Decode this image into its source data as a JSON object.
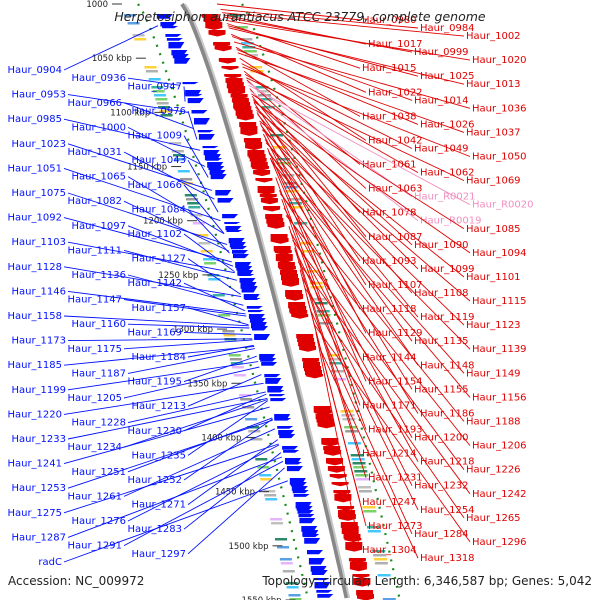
{
  "title": "Herpetosiphon aurantiacus ATCC 23779, complete genome",
  "accession_line": "Accession: NC_009972",
  "summary_line": "Topology: circular; Length: 6,346,587 bp; Genes: 5,042",
  "colors": {
    "forward": "#e00000",
    "reverse": "#0010ff",
    "rna": "#f090c0",
    "backbone": "#888888",
    "dots": "#1a8a1a"
  },
  "chart_data": {
    "type": "genome_map",
    "topology": "circular",
    "length_bp": 6346587,
    "genes_total": 5042,
    "visible_range_kbp": [
      1000,
      1550
    ],
    "ticks_kbp": [
      1000,
      1050,
      1100,
      1150,
      1200,
      1250,
      1300,
      1350,
      1400,
      1450,
      1500,
      1550
    ],
    "tick_labels": [
      "1000",
      "1050 kbp",
      "1100 kbp",
      "1150 kbp",
      "1200 kbp",
      "1250 kbp",
      "1300 kbp",
      "1350 kbp",
      "1400 kbp",
      "1450 kbp",
      "1500 kbp",
      "1550 kbp"
    ],
    "left_labels": [
      {
        "name": "Haur_0904",
        "kbp": 1020
      },
      {
        "name": "Haur_0936",
        "kbp": 1075
      },
      {
        "name": "Haur_0947",
        "kbp": 1090
      },
      {
        "name": "Haur_0953",
        "kbp": 1100
      },
      {
        "name": "Haur_0966",
        "kbp": 1115
      },
      {
        "name": "Haur_0976",
        "kbp": 1125
      },
      {
        "name": "Haur_0985",
        "kbp": 1135
      },
      {
        "name": "Haur_1000",
        "kbp": 1150
      },
      {
        "name": "Haur_1009",
        "kbp": 1160
      },
      {
        "name": "Haur_1023",
        "kbp": 1172
      },
      {
        "name": "Haur_1031",
        "kbp": 1180
      },
      {
        "name": "Haur_1043",
        "kbp": 1192
      },
      {
        "name": "Haur_1051",
        "kbp": 1200
      },
      {
        "name": "Haur_1065",
        "kbp": 1212
      },
      {
        "name": "Haur_1066",
        "kbp": 1212
      },
      {
        "name": "Haur_1075",
        "kbp": 1222
      },
      {
        "name": "Haur_1084",
        "kbp": 1230
      },
      {
        "name": "Haur_1082",
        "kbp": 1228
      },
      {
        "name": "Haur_1097",
        "kbp": 1242
      },
      {
        "name": "Haur_1111",
        "kbp": 1255
      },
      {
        "name": "Haur_1092",
        "kbp": 1238
      },
      {
        "name": "Haur_1103",
        "kbp": 1248
      },
      {
        "name": "Haur_1102",
        "kbp": 1247
      },
      {
        "name": "Haur_1127",
        "kbp": 1268
      },
      {
        "name": "Haur_1128",
        "kbp": 1270
      },
      {
        "name": "Haur_1147",
        "kbp": 1288
      },
      {
        "name": "Haur_1136",
        "kbp": 1278
      },
      {
        "name": "Haur_1146",
        "kbp": 1286
      },
      {
        "name": "Haur_1142",
        "kbp": 1283
      },
      {
        "name": "Haur_1157",
        "kbp": 1296
      },
      {
        "name": "Haur_1158",
        "kbp": 1297
      },
      {
        "name": "Haur_1169",
        "kbp": 1305
      },
      {
        "name": "Haur_1187",
        "kbp": 1318
      },
      {
        "name": "Haur_1160",
        "kbp": 1299
      },
      {
        "name": "Haur_1175",
        "kbp": 1310
      },
      {
        "name": "Haur_1173",
        "kbp": 1309
      },
      {
        "name": "Haur_1184",
        "kbp": 1315
      },
      {
        "name": "Haur_1195",
        "kbp": 1325
      },
      {
        "name": "Haur_1185",
        "kbp": 1316
      },
      {
        "name": "Haur_1213",
        "kbp": 1342
      },
      {
        "name": "Haur_1199",
        "kbp": 1330
      },
      {
        "name": "Haur_1205",
        "kbp": 1335
      },
      {
        "name": "Haur_1220",
        "kbp": 1350
      },
      {
        "name": "Haur_1230",
        "kbp": 1360
      },
      {
        "name": "Haur_1228",
        "kbp": 1358
      },
      {
        "name": "Haur_1233",
        "kbp": 1364
      },
      {
        "name": "Haur_1241",
        "kbp": 1372
      },
      {
        "name": "Haur_1234",
        "kbp": 1365
      },
      {
        "name": "Haur_1235",
        "kbp": 1366
      },
      {
        "name": "Haur_1251",
        "kbp": 1382
      },
      {
        "name": "Haur_1261",
        "kbp": 1392
      },
      {
        "name": "Haur_1252",
        "kbp": 1383
      },
      {
        "name": "Haur_1253",
        "kbp": 1384
      },
      {
        "name": "Haur_1271",
        "kbp": 1402
      },
      {
        "name": "Haur_1275",
        "kbp": 1406
      },
      {
        "name": "Haur_1283",
        "kbp": 1414
      },
      {
        "name": "Haur_1276",
        "kbp": 1407
      },
      {
        "name": "Haur_1287",
        "kbp": 1418
      },
      {
        "name": "Haur_1297",
        "kbp": 1428
      },
      {
        "name": "Haur_1291",
        "kbp": 1422
      },
      {
        "name": "radC",
        "kbp": 1440
      }
    ],
    "right_labels": [
      {
        "name": "Haur_1017",
        "kbp": 1010
      },
      {
        "name": "Haur_1025",
        "kbp": 1020
      },
      {
        "name": "Haur_0980",
        "kbp": 1000
      },
      {
        "name": "Haur_1014",
        "kbp": 1030
      },
      {
        "name": "Haur_0984",
        "kbp": 1005
      },
      {
        "name": "Haur_1002",
        "kbp": 1008
      },
      {
        "name": "Haur_1020",
        "kbp": 1015
      },
      {
        "name": "Haur_0999",
        "kbp": 1012
      },
      {
        "name": "Haur_1015",
        "kbp": 1018
      },
      {
        "name": "Haur_1038",
        "kbp": 1040
      },
      {
        "name": "Haur_1013",
        "kbp": 1022
      },
      {
        "name": "Haur_1037",
        "kbp": 1045
      },
      {
        "name": "Haur_1022",
        "kbp": 1028
      },
      {
        "name": "Haur_1036",
        "kbp": 1035
      },
      {
        "name": "Haur_1026",
        "kbp": 1042
      },
      {
        "name": "Haur_1063",
        "kbp": 1070
      },
      {
        "name": "Haur_1049",
        "kbp": 1055
      },
      {
        "name": "Haur_1062",
        "kbp": 1065
      },
      {
        "name": "Haur_R0021",
        "kbp": 1072,
        "rna": true
      },
      {
        "name": "Haur_1042",
        "kbp": 1050
      },
      {
        "name": "Haur_1061",
        "kbp": 1062
      },
      {
        "name": "Haur_R0020",
        "kbp": 1075,
        "rna": true
      },
      {
        "name": "Haur_1087",
        "kbp": 1085
      },
      {
        "name": "Haur_1050",
        "kbp": 1058
      },
      {
        "name": "Haur_1069",
        "kbp": 1068
      },
      {
        "name": "Haur_1094",
        "kbp": 1090
      },
      {
        "name": "Haur_R0019",
        "kbp": 1080,
        "rna": true
      },
      {
        "name": "Haur_1085",
        "kbp": 1083
      },
      {
        "name": "Haur_1099",
        "kbp": 1095
      },
      {
        "name": "Haur_1090",
        "kbp": 1088
      },
      {
        "name": "Haur_1078",
        "kbp": 1078
      },
      {
        "name": "Haur_1108",
        "kbp": 1102
      },
      {
        "name": "Haur_1093",
        "kbp": 1091
      },
      {
        "name": "Haur_1107",
        "kbp": 1100
      },
      {
        "name": "Haur_1118",
        "kbp": 1110
      },
      {
        "name": "Haur_1101",
        "kbp": 1098
      },
      {
        "name": "Haur_1119",
        "kbp": 1112
      },
      {
        "name": "Haur_1115",
        "kbp": 1108
      },
      {
        "name": "Haur_1129",
        "kbp": 1120
      },
      {
        "name": "Haur_1123",
        "kbp": 1116
      },
      {
        "name": "Haur_1139",
        "kbp": 1128
      },
      {
        "name": "Haur_1135",
        "kbp": 1125
      },
      {
        "name": "Haur_1149",
        "kbp": 1138
      },
      {
        "name": "Haur_1148",
        "kbp": 1136
      },
      {
        "name": "Haur_1144",
        "kbp": 1133
      },
      {
        "name": "Haur_1156",
        "kbp": 1145
      },
      {
        "name": "Haur_1154",
        "kbp": 1142
      },
      {
        "name": "Haur_1155",
        "kbp": 1143
      },
      {
        "name": "Haur_1171",
        "kbp": 1160
      },
      {
        "name": "Haur_1188",
        "kbp": 1175
      },
      {
        "name": "Haur_1186",
        "kbp": 1172
      },
      {
        "name": "Haur_1193",
        "kbp": 1180
      },
      {
        "name": "Haur_1206",
        "kbp": 1195
      },
      {
        "name": "Haur_1200",
        "kbp": 1188
      },
      {
        "name": "Haur_1214",
        "kbp": 1205
      },
      {
        "name": "Haur_1218",
        "kbp": 1210
      },
      {
        "name": "Haur_1226",
        "kbp": 1218
      },
      {
        "name": "Haur_1231",
        "kbp": 1225
      },
      {
        "name": "Haur_1232",
        "kbp": 1227
      },
      {
        "name": "Haur_1242",
        "kbp": 1238
      },
      {
        "name": "Haur_1247",
        "kbp": 1245
      },
      {
        "name": "Haur_1254",
        "kbp": 1252
      },
      {
        "name": "Haur_1265",
        "kbp": 1262
      },
      {
        "name": "Haur_1273",
        "kbp": 1270
      },
      {
        "name": "Haur_1284",
        "kbp": 1282
      },
      {
        "name": "Haur_1296",
        "kbp": 1295
      },
      {
        "name": "Haur_1304",
        "kbp": 1303
      },
      {
        "name": "Haur_1318",
        "kbp": 1318
      }
    ]
  }
}
